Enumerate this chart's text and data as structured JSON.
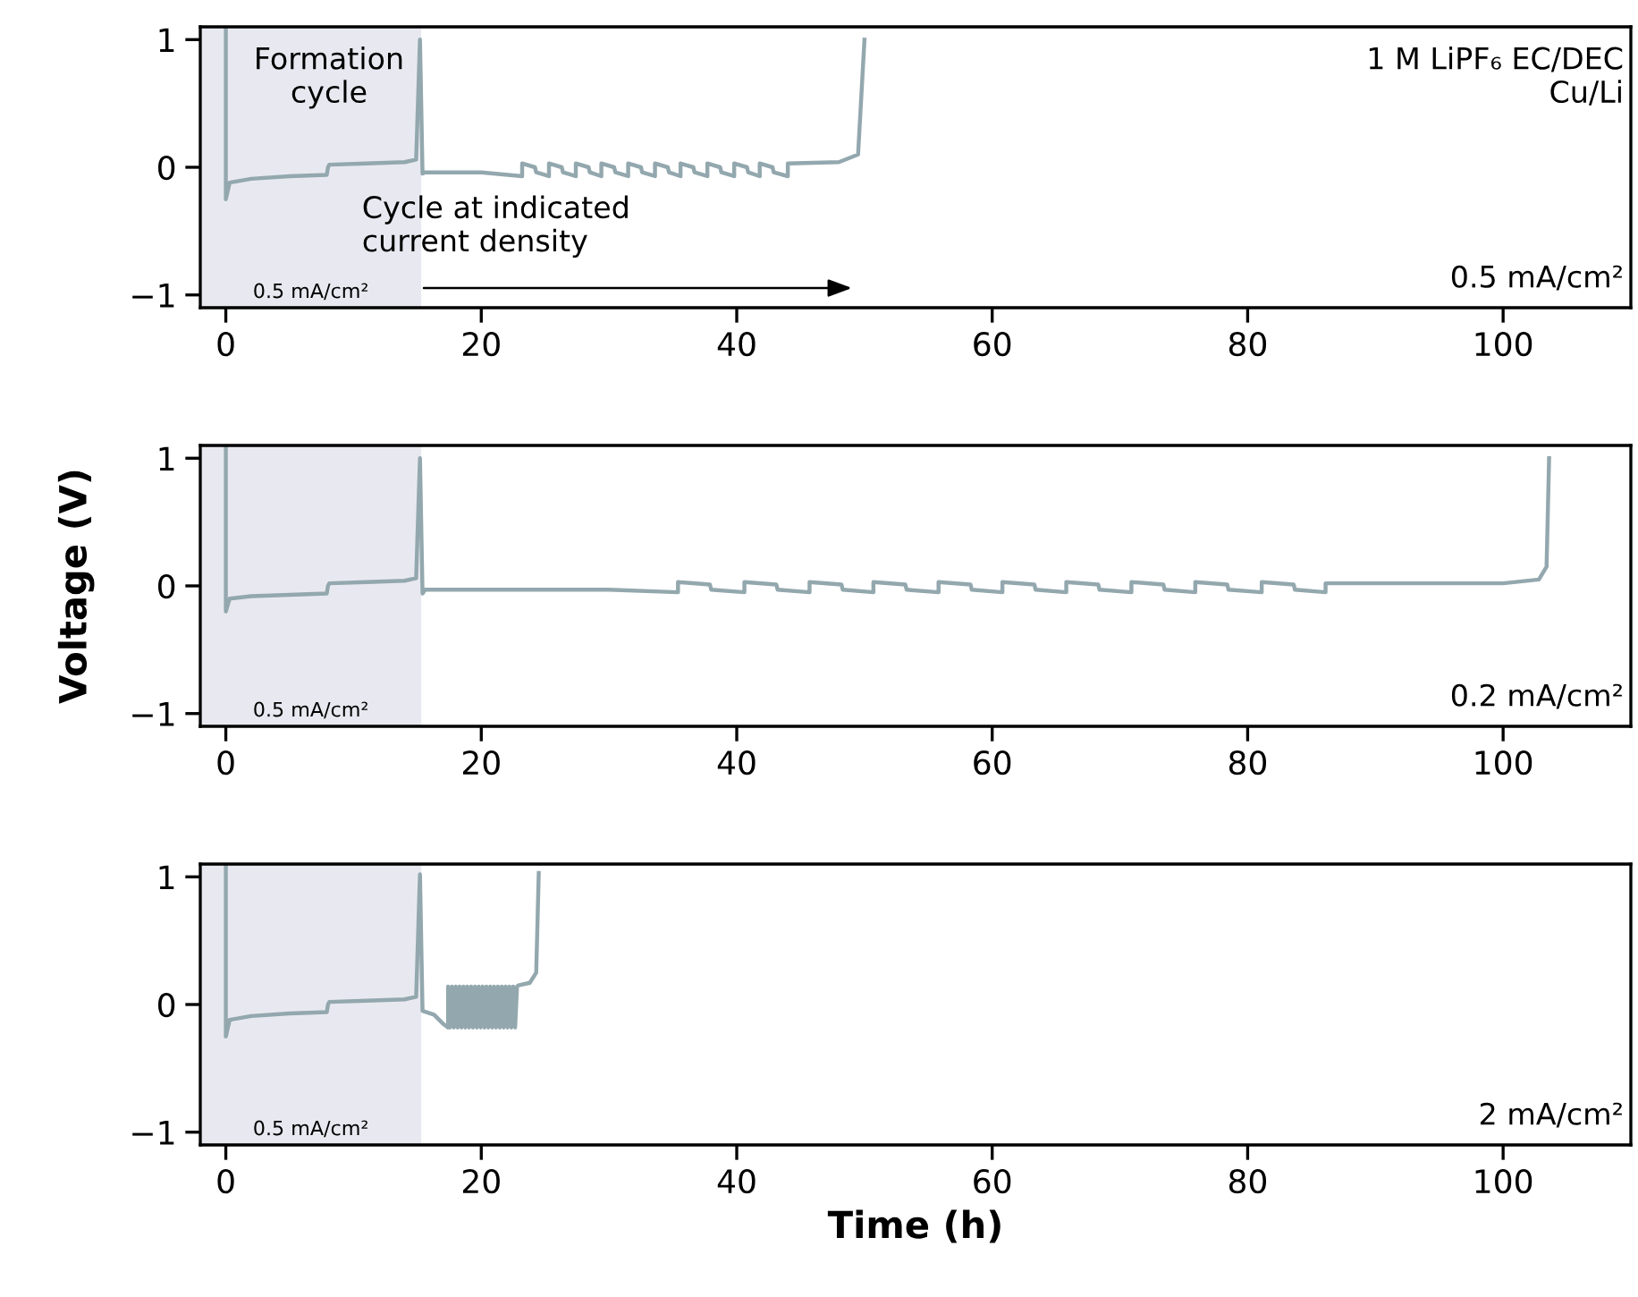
{
  "chart_data": [
    {
      "type": "line",
      "xlim": [
        -2,
        110
      ],
      "ylim": [
        -1.1,
        1.1
      ],
      "xticks": [
        0,
        20,
        40,
        60,
        80,
        100
      ],
      "yticks": [
        -1,
        0,
        1
      ],
      "grid": false,
      "bands": [
        {
          "axis": "x",
          "from": -2,
          "to": 15.3,
          "label": "0.5 mA/cm²",
          "color": "#e8e9f0"
        }
      ],
      "annotations": [
        "Formation\ncycle",
        "Cycle at indicated\ncurrent density",
        "1 M LiPF₆ EC/DEC\nCu/Li",
        "0.5 mA/cm²"
      ],
      "series": [
        {
          "color": "#93a8ae",
          "x": [
            0,
            0,
            0.3,
            2,
            5,
            7.9,
            8,
            8.1,
            11,
            14,
            14.9,
            15.2,
            15.4,
            15.6,
            20,
            23.2,
            23.2,
            24.2,
            24.3,
            25.3,
            25.3,
            26.3,
            26.4,
            27.4,
            27.4,
            28.4,
            28.5,
            29.4,
            29.4,
            30.4,
            30.5,
            31.5,
            31.5,
            32.5,
            32.6,
            33.6,
            33.6,
            34.6,
            34.7,
            35.6,
            35.6,
            36.6,
            36.7,
            37.7,
            37.7,
            38.7,
            38.8,
            39.8,
            39.8,
            40.8,
            40.9,
            41.8,
            41.8,
            42.8,
            42.9,
            44.0,
            44.0,
            48,
            49.5,
            50
          ],
          "values": [
            1.08,
            -0.25,
            -0.12,
            -0.09,
            -0.07,
            -0.06,
            0.0,
            0.02,
            0.03,
            0.04,
            0.06,
            1.0,
            -0.05,
            -0.04,
            -0.04,
            -0.07,
            0.03,
            0.0,
            -0.04,
            -0.07,
            0.03,
            0.0,
            -0.04,
            -0.07,
            0.03,
            0.0,
            -0.04,
            -0.07,
            0.03,
            0.0,
            -0.04,
            -0.07,
            0.03,
            0.0,
            -0.04,
            -0.07,
            0.03,
            0.0,
            -0.04,
            -0.07,
            0.03,
            0.0,
            -0.04,
            -0.07,
            0.03,
            0.0,
            -0.04,
            -0.07,
            0.03,
            0.0,
            -0.04,
            -0.07,
            0.03,
            0.0,
            -0.04,
            -0.07,
            0.03,
            0.04,
            0.1,
            1.0
          ]
        }
      ]
    },
    {
      "type": "line",
      "ylabel": "Voltage (V)",
      "xlim": [
        -2,
        110
      ],
      "ylim": [
        -1.1,
        1.1
      ],
      "xticks": [
        0,
        20,
        40,
        60,
        80,
        100
      ],
      "yticks": [
        -1,
        0,
        1
      ],
      "grid": false,
      "bands": [
        {
          "axis": "x",
          "from": -2,
          "to": 15.3,
          "label": "0.5 mA/cm²",
          "color": "#e8e9f0"
        }
      ],
      "annotations": [
        "0.2 mA/cm²"
      ],
      "series": [
        {
          "color": "#93a8ae",
          "x": [
            0,
            0,
            0.3,
            2,
            5,
            7.9,
            8,
            8.1,
            11,
            14,
            14.9,
            15.2,
            15.4,
            15.6,
            30,
            35.4,
            35.4,
            37.9,
            38.0,
            40.6,
            40.6,
            43.1,
            43.2,
            45.7,
            45.7,
            48.2,
            48.3,
            50.7,
            50.7,
            53.2,
            53.3,
            55.8,
            55.8,
            58.3,
            58.4,
            60.8,
            60.8,
            63.3,
            63.4,
            65.8,
            65.8,
            68.3,
            68.4,
            70.9,
            70.9,
            73.4,
            73.5,
            75.9,
            75.9,
            78.4,
            78.5,
            81.1,
            81.1,
            83.6,
            83.7,
            86.1,
            86.1,
            100,
            102.8,
            103.4,
            103.6
          ],
          "values": [
            1.08,
            -0.2,
            -0.1,
            -0.08,
            -0.07,
            -0.06,
            0.0,
            0.02,
            0.03,
            0.04,
            0.06,
            1.0,
            -0.06,
            -0.03,
            -0.03,
            -0.05,
            0.03,
            0.01,
            -0.03,
            -0.05,
            0.03,
            0.01,
            -0.03,
            -0.05,
            0.03,
            0.01,
            -0.03,
            -0.05,
            0.03,
            0.01,
            -0.03,
            -0.05,
            0.03,
            0.01,
            -0.03,
            -0.05,
            0.03,
            0.01,
            -0.03,
            -0.05,
            0.03,
            0.01,
            -0.03,
            -0.05,
            0.03,
            0.01,
            -0.03,
            -0.05,
            0.03,
            0.01,
            -0.03,
            -0.05,
            0.03,
            0.01,
            -0.03,
            -0.05,
            0.02,
            0.02,
            0.05,
            0.15,
            1.0
          ]
        }
      ]
    },
    {
      "type": "line",
      "xlabel": "Time (h)",
      "xlim": [
        -2,
        110
      ],
      "ylim": [
        -1.1,
        1.1
      ],
      "xticks": [
        0,
        20,
        40,
        60,
        80,
        100
      ],
      "yticks": [
        -1,
        0,
        1
      ],
      "grid": false,
      "bands": [
        {
          "axis": "x",
          "from": -2,
          "to": 15.3,
          "label": "0.5 mA/cm²",
          "color": "#e8e9f0"
        }
      ],
      "annotations": [
        "2 mA/cm²"
      ],
      "series": [
        {
          "color": "#93a8ae",
          "x": [
            0,
            0,
            0.3,
            2,
            5,
            7.9,
            8,
            8.1,
            11,
            14,
            14.9,
            15.2,
            15.4,
            16.3,
            17.0,
            17.4,
            17.4,
            17.55,
            17.7,
            17.85,
            18.0,
            18.15,
            18.3,
            18.45,
            18.6,
            18.75,
            18.9,
            19.05,
            19.2,
            19.35,
            19.5,
            19.65,
            19.8,
            19.95,
            20.1,
            20.25,
            20.4,
            20.55,
            20.7,
            20.85,
            21.0,
            21.15,
            21.3,
            21.45,
            21.6,
            21.75,
            21.9,
            22.05,
            22.2,
            22.35,
            22.5,
            22.65,
            22.8,
            22.9,
            23.8,
            24.3,
            24.5
          ],
          "values": [
            1.08,
            -0.25,
            -0.12,
            -0.09,
            -0.07,
            -0.06,
            0.0,
            0.02,
            0.03,
            0.04,
            0.06,
            1.02,
            -0.05,
            -0.08,
            -0.15,
            -0.18,
            0.14,
            -0.18,
            0.14,
            -0.18,
            0.14,
            -0.18,
            0.14,
            -0.18,
            0.14,
            -0.18,
            0.14,
            -0.18,
            0.14,
            -0.18,
            0.14,
            -0.18,
            0.14,
            -0.18,
            0.14,
            -0.18,
            0.14,
            -0.18,
            0.14,
            -0.18,
            0.14,
            -0.18,
            0.14,
            -0.18,
            0.14,
            -0.18,
            0.14,
            -0.18,
            0.14,
            -0.18,
            0.14,
            -0.18,
            0.14,
            0.15,
            0.17,
            0.25,
            1.03
          ]
        }
      ]
    }
  ]
}
